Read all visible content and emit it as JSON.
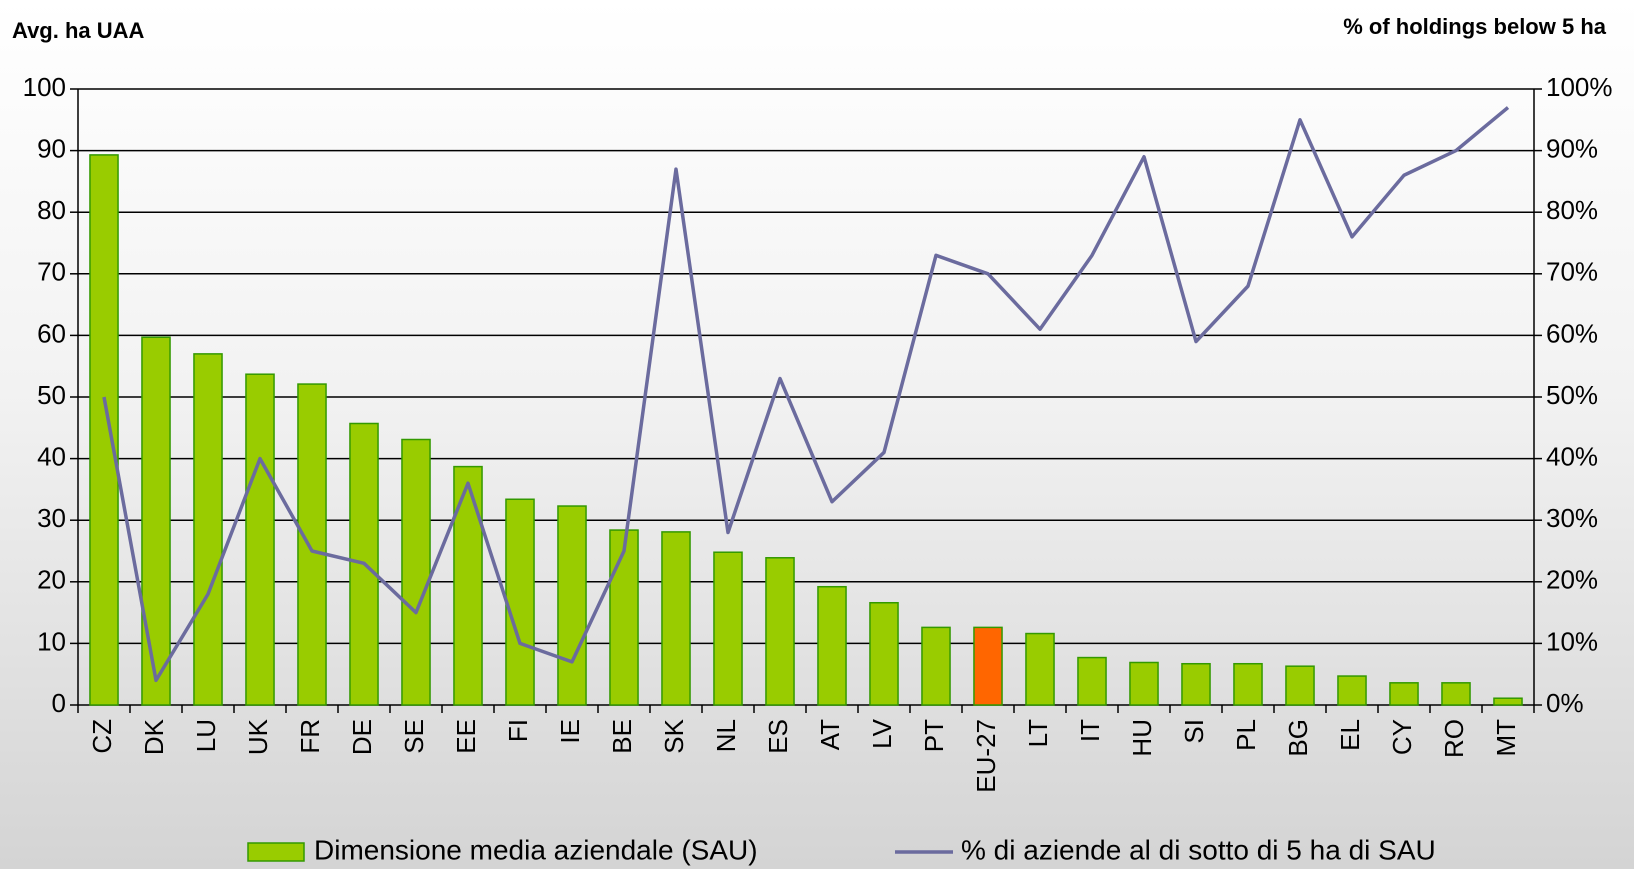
{
  "chart_data": {
    "type": "bar",
    "y_axis_title": "Avg. ha UAA",
    "y2_axis_title": "% of holdings below 5 ha",
    "categories": [
      "CZ",
      "DK",
      "LU",
      "UK",
      "FR",
      "DE",
      "SE",
      "EE",
      "FI",
      "IE",
      "BE",
      "SK",
      "NL",
      "ES",
      "AT",
      "LV",
      "PT",
      "EU-27",
      "LT",
      "IT",
      "HU",
      "SI",
      "PL",
      "BG",
      "EL",
      "CY",
      "RO",
      "MT"
    ],
    "series": [
      {
        "name": "Dimensione media aziendale (SAU)",
        "type": "bar",
        "color": "#99cc00",
        "colors": [
          "#99cc00",
          "#99cc00",
          "#99cc00",
          "#99cc00",
          "#99cc00",
          "#99cc00",
          "#99cc00",
          "#99cc00",
          "#99cc00",
          "#99cc00",
          "#99cc00",
          "#99cc00",
          "#99cc00",
          "#99cc00",
          "#99cc00",
          "#99cc00",
          "#99cc00",
          "#ff6600",
          "#99cc00",
          "#99cc00",
          "#99cc00",
          "#99cc00",
          "#99cc00",
          "#99cc00",
          "#99cc00",
          "#99cc00",
          "#99cc00",
          "#99cc00"
        ],
        "values": [
          89.3,
          59.7,
          57,
          53.7,
          52.1,
          45.7,
          43.1,
          38.7,
          33.4,
          32.3,
          28.4,
          28.1,
          24.8,
          23.9,
          19.2,
          16.6,
          12.6,
          12.6,
          11.6,
          7.7,
          6.9,
          6.7,
          6.7,
          6.3,
          4.7,
          3.6,
          3.6,
          1.1
        ]
      },
      {
        "name": "% di aziende al di sotto di 5 ha di SAU",
        "type": "line",
        "axis": "y2",
        "color": "#6b6b9e",
        "values": [
          50,
          4,
          18,
          40,
          25,
          23,
          15,
          36,
          10,
          7,
          25,
          87,
          28,
          53,
          33,
          41,
          73,
          70,
          61,
          73,
          89,
          59,
          68,
          95,
          76,
          86,
          90,
          97
        ]
      }
    ],
    "ylim": [
      0,
      100
    ],
    "yticks": [
      0,
      10,
      20,
      30,
      40,
      50,
      60,
      70,
      80,
      90,
      100
    ],
    "y2lim": [
      0,
      100
    ],
    "y2ticks": [
      {
        "value": 0,
        "label": "0%"
      },
      {
        "value": 10,
        "label": "10%"
      },
      {
        "value": 20,
        "label": "20%"
      },
      {
        "value": 30,
        "label": "30%"
      },
      {
        "value": 40,
        "label": "40%"
      },
      {
        "value": 50,
        "label": "50%"
      },
      {
        "value": 60,
        "label": "60%"
      },
      {
        "value": 70,
        "label": "70%"
      },
      {
        "value": 80,
        "label": "80%"
      },
      {
        "value": 90,
        "label": "90%"
      },
      {
        "value": 100,
        "label": "100%"
      }
    ],
    "grid": true,
    "legend": "bottom"
  }
}
